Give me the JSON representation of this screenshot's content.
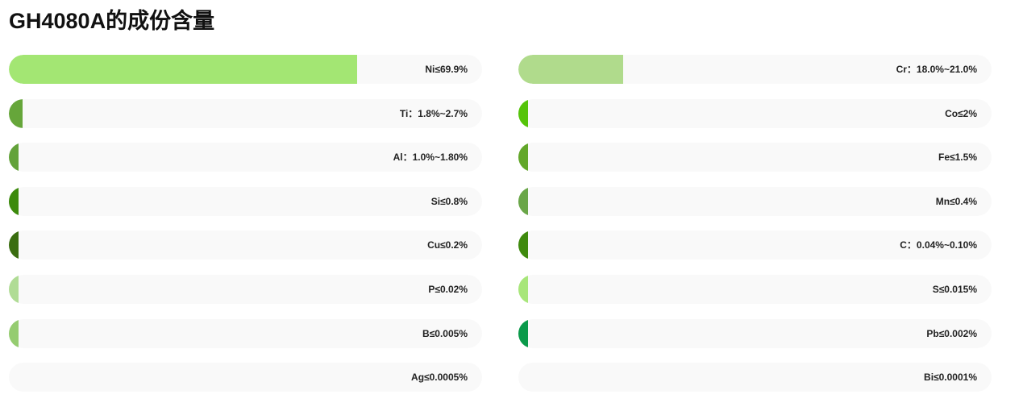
{
  "title": "GH4080A的成份含量",
  "chart_data": {
    "type": "bar",
    "orientation": "horizontal",
    "title": "GH4080A的成份含量",
    "value_unit": "%",
    "xlim": [
      0,
      95
    ],
    "grid": false,
    "legend": "none",
    "columns": [
      {
        "items": [
          {
            "label": "Ni≤69.9%",
            "value": 69.9,
            "color": "#a3e673"
          },
          {
            "label": "Ti：1.8%~2.7%",
            "value": 2.7,
            "color": "#66a63a"
          },
          {
            "label": "Al：1.0%~1.80%",
            "value": 1.8,
            "color": "#63a23a"
          },
          {
            "label": "Si≤0.8%",
            "value": 0.8,
            "color": "#3c8a0c"
          },
          {
            "label": "Cu≤0.2%",
            "value": 0.2,
            "color": "#3a6d10"
          },
          {
            "label": "P≤0.02%",
            "value": 0.02,
            "color": "#b0dc95"
          },
          {
            "label": "B≤0.005%",
            "value": 0.005,
            "color": "#95cc70"
          },
          {
            "label": "Ag≤0.0005%",
            "value": 0.0005,
            "color": "#f9f9f9"
          }
        ]
      },
      {
        "items": [
          {
            "label": "Cr：18.0%~21.0%",
            "value": 21.0,
            "color": "#b0db8c"
          },
          {
            "label": "Co≤2%",
            "value": 2,
            "color": "#55c40a"
          },
          {
            "label": "Fe≤1.5%",
            "value": 1.5,
            "color": "#63a72a"
          },
          {
            "label": "Mn≤0.4%",
            "value": 0.4,
            "color": "#6aa648"
          },
          {
            "label": "C：0.04%~0.10%",
            "value": 0.1,
            "color": "#3f8a0e"
          },
          {
            "label": "S≤0.015%",
            "value": 0.015,
            "color": "#a8e67a"
          },
          {
            "label": "Pb≤0.002%",
            "value": 0.002,
            "color": "#0a9a4a"
          },
          {
            "label": "Bi≤0.0001%",
            "value": 0.0001,
            "color": "#f9f9f9"
          }
        ]
      }
    ]
  }
}
